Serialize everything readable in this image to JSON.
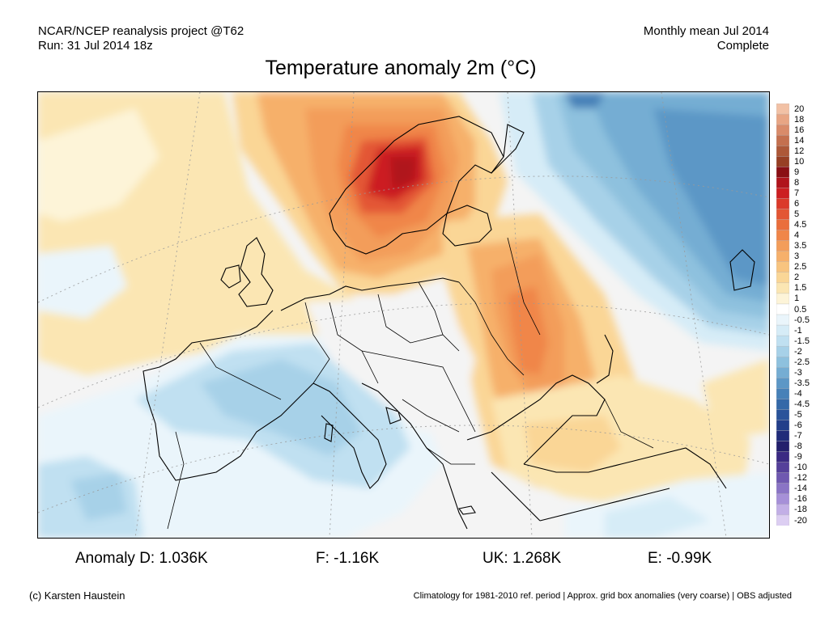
{
  "header": {
    "source_line1": "NCAR/NCEP reanalysis project @T62",
    "source_line2": "Run: 31 Jul 2014 18z",
    "period_line1": "Monthly mean Jul 2014",
    "period_line2": "Complete"
  },
  "title": "Temperature anomaly 2m (°C)",
  "colorbar": {
    "labels": [
      "20",
      "18",
      "16",
      "14",
      "12",
      "10",
      "9",
      "8",
      "7",
      "6",
      "5",
      "4.5",
      "4",
      "3.5",
      "3",
      "2.5",
      "2",
      "1.5",
      "1",
      "0.5",
      "-0.5",
      "-1",
      "-1.5",
      "-2",
      "-2.5",
      "-3",
      "-3.5",
      "-4",
      "-4.5",
      "-5",
      "-6",
      "-7",
      "-8",
      "-9",
      "-10",
      "-12",
      "-14",
      "-16",
      "-18",
      "-20"
    ],
    "colors": [
      "#f2c1a5",
      "#e8a584",
      "#d98b6a",
      "#c4704f",
      "#ad5838",
      "#973f24",
      "#8a0f14",
      "#b0141c",
      "#cc1f22",
      "#db3a2a",
      "#e35634",
      "#ea6e3c",
      "#f08649",
      "#f39d5a",
      "#f6b06b",
      "#f8c47f",
      "#fad696",
      "#fbe6b3",
      "#fdf4d8",
      "#ffffff",
      "#eaf5fb",
      "#d6ecf7",
      "#c0e0f1",
      "#a7d1e8",
      "#8ec1de",
      "#75add3",
      "#5c97c6",
      "#4781b8",
      "#3569a8",
      "#2a539a",
      "#233f8a",
      "#212c7a",
      "#24206c",
      "#3b2a83",
      "#55409a",
      "#6f58b0",
      "#8a74c5",
      "#a690d8",
      "#c2afe6",
      "#dccef2"
    ]
  },
  "stats": {
    "germany": "Anomaly D: 1.036K",
    "france": "F: -1.16K",
    "uk": "UK: 1.268K",
    "spain": "E: -0.99K"
  },
  "footer": {
    "credit": "(c) Karsten Haustein",
    "note": "Climatology for 1981-2010 ref. period | Approx. grid box anomalies (very coarse) | OBS adjusted"
  }
}
